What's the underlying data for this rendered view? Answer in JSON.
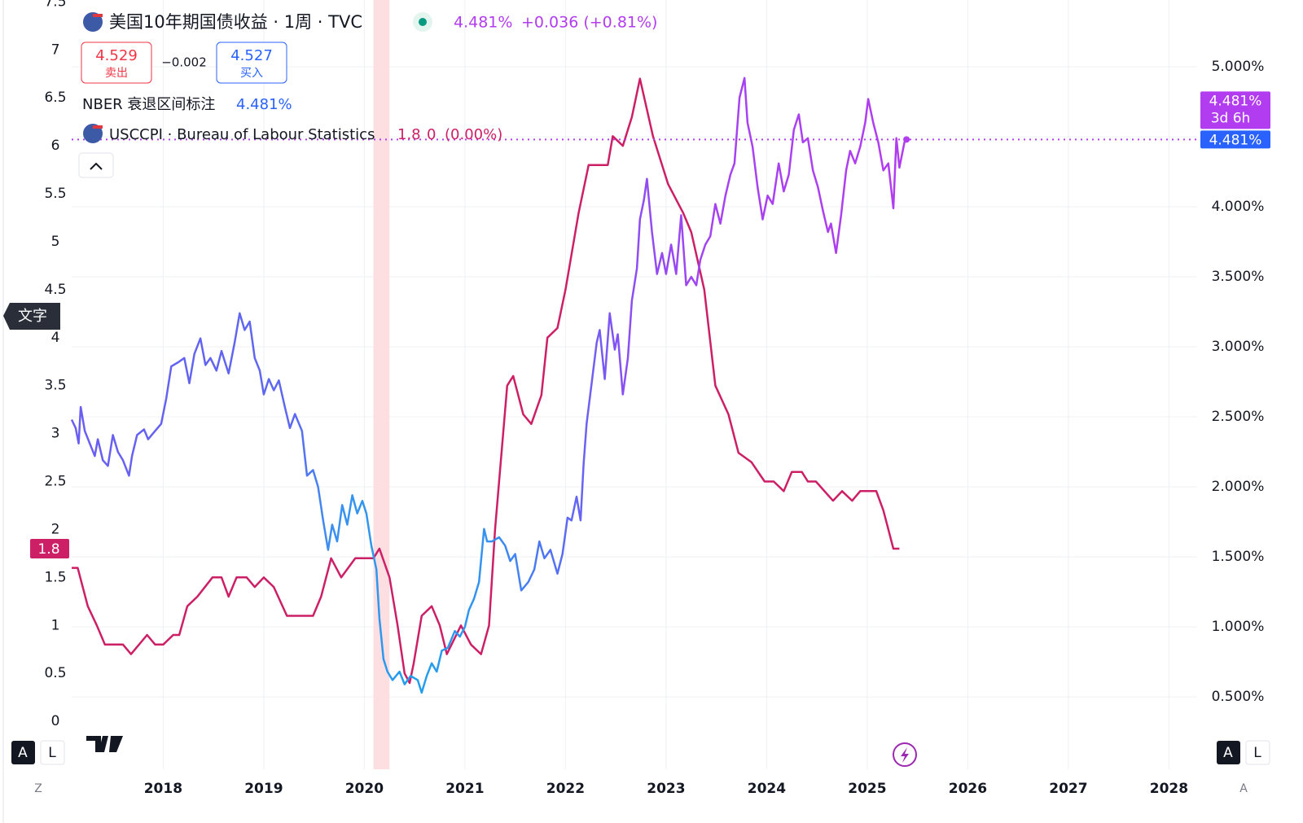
{
  "chart_data": {
    "type": "line",
    "xlim": [
      2017.09,
      2028.28
    ],
    "xticks": [
      2018,
      2019,
      2020,
      2021,
      2022,
      2023,
      2024,
      2025,
      2026,
      2027,
      2028
    ],
    "ylim": [
      -0.5,
      7.52
    ],
    "yticks": [
      0,
      0.5,
      1,
      1.5,
      2,
      2.5,
      3,
      3.5,
      4,
      4.5,
      5,
      5.5,
      6,
      6.5,
      7,
      7.5
    ],
    "y2lim": [
      -0.017,
      5.477
    ],
    "y2ticks": [
      {
        "value": 0.5,
        "label": "0.500%"
      },
      {
        "value": 1,
        "label": "1.000%"
      },
      {
        "value": 1.5,
        "label": "1.500%"
      },
      {
        "value": 2,
        "label": "2.000%"
      },
      {
        "value": 2.5,
        "label": "2.500%"
      },
      {
        "value": 3,
        "label": "3.000%"
      },
      {
        "value": 3.5,
        "label": "3.500%"
      },
      {
        "value": 4,
        "label": "4.000%"
      },
      {
        "value": 4.5,
        "label": "4.500%"
      },
      {
        "value": 5,
        "label": "5.000%"
      }
    ],
    "grid": true,
    "shade": {
      "name": "NBER 衰退区间标注",
      "x": [
        2020.09,
        2020.25
      ],
      "color": "#fddfe2"
    },
    "series": [
      {
        "name": "USCCPI · Bureau of Labour Statistics",
        "color": "#cc1f66",
        "x": [
          2017.09,
          2017.15,
          2017.25,
          2017.34,
          2017.42,
          2017.6,
          2017.68,
          2017.84,
          2017.92,
          2018.0,
          2018.1,
          2018.16,
          2018.24,
          2018.34,
          2018.49,
          2018.58,
          2018.65,
          2018.73,
          2018.83,
          2018.91,
          2019.0,
          2019.1,
          2019.23,
          2019.49,
          2019.57,
          2019.67,
          2019.77,
          2019.91,
          2020.09,
          2020.15,
          2020.25,
          2020.33,
          2020.4,
          2020.45,
          2020.49,
          2020.57,
          2020.67,
          2020.75,
          2020.82,
          2020.96,
          2021.06,
          2021.16,
          2021.24,
          2021.3,
          2021.42,
          2021.48,
          2021.58,
          2021.66,
          2021.76,
          2021.82,
          2021.92,
          2022.0,
          2022.13,
          2022.23,
          2022.42,
          2022.47,
          2022.57,
          2022.66,
          2022.74,
          2022.87,
          2023.02,
          2023.17,
          2023.25,
          2023.38,
          2023.49,
          2023.62,
          2023.72,
          2023.85,
          2023.98,
          2024.07,
          2024.17,
          2024.25,
          2024.35,
          2024.41,
          2024.49,
          2024.66,
          2024.75,
          2024.85,
          2024.93,
          2025.09,
          2025.16,
          2025.26,
          2025.32
        ],
        "values": [
          1.6,
          1.6,
          1.2,
          1.0,
          0.8,
          0.8,
          0.7,
          0.9,
          0.8,
          0.8,
          0.9,
          0.9,
          1.2,
          1.3,
          1.5,
          1.5,
          1.3,
          1.5,
          1.5,
          1.4,
          1.5,
          1.4,
          1.1,
          1.1,
          1.3,
          1.7,
          1.5,
          1.7,
          1.7,
          1.8,
          1.5,
          1.0,
          0.5,
          0.4,
          0.6,
          1.1,
          1.2,
          1.0,
          0.7,
          1.0,
          0.8,
          0.7,
          1.0,
          2.0,
          3.5,
          3.6,
          3.2,
          3.1,
          3.4,
          4.0,
          4.1,
          4.5,
          5.3,
          5.8,
          5.8,
          6.1,
          6.0,
          6.3,
          6.7,
          6.1,
          5.6,
          5.3,
          5.1,
          4.5,
          3.5,
          3.2,
          2.8,
          2.7,
          2.5,
          2.5,
          2.4,
          2.6,
          2.6,
          2.5,
          2.5,
          2.3,
          2.4,
          2.3,
          2.4,
          2.4,
          2.2,
          1.8,
          1.8
        ]
      },
      {
        "name": "美国10年期国债收益 · 1周 · TVC",
        "axis": "y2",
        "gradient": [
          [
            2017.09,
            "#6a5ef2"
          ],
          [
            2019.3,
            "#5d68f0"
          ],
          [
            2019.65,
            "#3c8ef0"
          ],
          [
            2020.5,
            "#229fec"
          ],
          [
            2021.2,
            "#3592f0"
          ],
          [
            2021.9,
            "#5470f3"
          ],
          [
            2022.6,
            "#8a4ff3"
          ],
          [
            2023.5,
            "#a542f1"
          ],
          [
            2025.4,
            "#b23cf0"
          ]
        ],
        "x": [
          2017.09,
          2017.13,
          2017.16,
          2017.18,
          2017.22,
          2017.27,
          2017.32,
          2017.35,
          2017.4,
          2017.45,
          2017.5,
          2017.55,
          2017.6,
          2017.66,
          2017.69,
          2017.74,
          2017.81,
          2017.85,
          2017.92,
          2017.98,
          2018.03,
          2018.08,
          2018.15,
          2018.21,
          2018.26,
          2018.31,
          2018.37,
          2018.42,
          2018.47,
          2018.53,
          2018.58,
          2018.65,
          2018.71,
          2018.76,
          2018.81,
          2018.86,
          2018.91,
          2018.96,
          2019.0,
          2019.05,
          2019.1,
          2019.15,
          2019.21,
          2019.26,
          2019.31,
          2019.38,
          2019.43,
          2019.49,
          2019.54,
          2019.59,
          2019.64,
          2019.68,
          2019.73,
          2019.78,
          2019.83,
          2019.88,
          2019.93,
          2019.98,
          2020.02,
          2020.07,
          2020.12,
          2020.15,
          2020.19,
          2020.23,
          2020.28,
          2020.35,
          2020.4,
          2020.46,
          2020.53,
          2020.57,
          2020.62,
          2020.67,
          2020.72,
          2020.77,
          2020.83,
          2020.9,
          2020.95,
          2021.0,
          2021.04,
          2021.09,
          2021.14,
          2021.19,
          2021.22,
          2021.27,
          2021.34,
          2021.4,
          2021.45,
          2021.5,
          2021.56,
          2021.63,
          2021.69,
          2021.74,
          2021.79,
          2021.85,
          2021.92,
          2021.97,
          2022.02,
          2022.06,
          2022.11,
          2022.15,
          2022.18,
          2022.21,
          2022.26,
          2022.31,
          2022.34,
          2022.39,
          2022.44,
          2022.49,
          2022.52,
          2022.57,
          2022.62,
          2022.66,
          2022.71,
          2022.74,
          2022.78,
          2022.81,
          2022.86,
          2022.91,
          2022.96,
          2023.0,
          2023.05,
          2023.1,
          2023.15,
          2023.2,
          2023.25,
          2023.3,
          2023.34,
          2023.39,
          2023.44,
          2023.49,
          2023.54,
          2023.59,
          2023.64,
          2023.68,
          2023.73,
          2023.78,
          2023.81,
          2023.86,
          2023.91,
          2023.96,
          2024.01,
          2024.06,
          2024.12,
          2024.17,
          2024.22,
          2024.27,
          2024.32,
          2024.36,
          2024.41,
          2024.46,
          2024.51,
          2024.56,
          2024.61,
          2024.64,
          2024.69,
          2024.74,
          2024.79,
          2024.83,
          2024.88,
          2024.93,
          2024.98,
          2025.01,
          2025.06,
          2025.11,
          2025.16,
          2025.21,
          2025.26,
          2025.29,
          2025.32,
          2025.37,
          2025.39
        ],
        "values": [
          2.48,
          2.42,
          2.31,
          2.57,
          2.4,
          2.31,
          2.22,
          2.34,
          2.19,
          2.15,
          2.37,
          2.25,
          2.19,
          2.08,
          2.22,
          2.37,
          2.41,
          2.34,
          2.4,
          2.45,
          2.63,
          2.86,
          2.89,
          2.92,
          2.74,
          2.95,
          3.06,
          2.87,
          2.92,
          2.83,
          2.97,
          2.81,
          3.03,
          3.24,
          3.12,
          3.18,
          2.92,
          2.83,
          2.66,
          2.77,
          2.69,
          2.76,
          2.57,
          2.42,
          2.52,
          2.4,
          2.08,
          2.12,
          2.0,
          1.76,
          1.55,
          1.73,
          1.61,
          1.87,
          1.73,
          1.94,
          1.81,
          1.9,
          1.81,
          1.58,
          1.41,
          1.06,
          0.77,
          0.68,
          0.62,
          0.68,
          0.59,
          0.65,
          0.62,
          0.53,
          0.65,
          0.74,
          0.68,
          0.83,
          0.85,
          0.97,
          0.93,
          1.0,
          1.12,
          1.2,
          1.32,
          1.7,
          1.61,
          1.61,
          1.64,
          1.58,
          1.47,
          1.52,
          1.26,
          1.32,
          1.41,
          1.61,
          1.49,
          1.55,
          1.38,
          1.52,
          1.78,
          1.76,
          1.93,
          1.76,
          2.16,
          2.45,
          2.74,
          3.03,
          3.12,
          2.77,
          3.24,
          2.98,
          3.09,
          2.66,
          2.92,
          3.33,
          3.56,
          3.91,
          4.05,
          4.2,
          3.82,
          3.52,
          3.67,
          3.52,
          3.73,
          3.52,
          3.94,
          3.44,
          3.5,
          3.44,
          3.62,
          3.73,
          3.79,
          4.02,
          3.88,
          4.08,
          4.23,
          4.31,
          4.78,
          4.92,
          4.6,
          4.43,
          4.14,
          3.91,
          4.08,
          4.02,
          4.31,
          4.11,
          4.23,
          4.55,
          4.66,
          4.46,
          4.49,
          4.26,
          4.14,
          3.97,
          3.82,
          3.88,
          3.67,
          3.94,
          4.26,
          4.4,
          4.31,
          4.43,
          4.6,
          4.77,
          4.6,
          4.46,
          4.26,
          4.31,
          3.99,
          4.49,
          4.28,
          4.46,
          4.481
        ]
      }
    ]
  },
  "ui": {
    "last": "4.481%",
    "change": "+0.036 (+0.81%)",
    "sell_price": "4.529",
    "sell": "卖出",
    "spread": "−0.002",
    "buy_price": "4.527",
    "buy": "买入",
    "nber_value": "4.481%",
    "cpi_value": "1.8",
    "cpi_change": "0",
    "cpi_change_pct": "(0.00%)",
    "tag_price": "4.481%",
    "tag_countdown": "3d 6h",
    "tag_price_2": "4.481%",
    "cpi_tag": "1.8",
    "tooltip": "文字",
    "left_buttons": [
      "A",
      "L"
    ],
    "right_buttons": [
      "A",
      "L"
    ],
    "corner_left": "Z",
    "corner_right": "A"
  }
}
